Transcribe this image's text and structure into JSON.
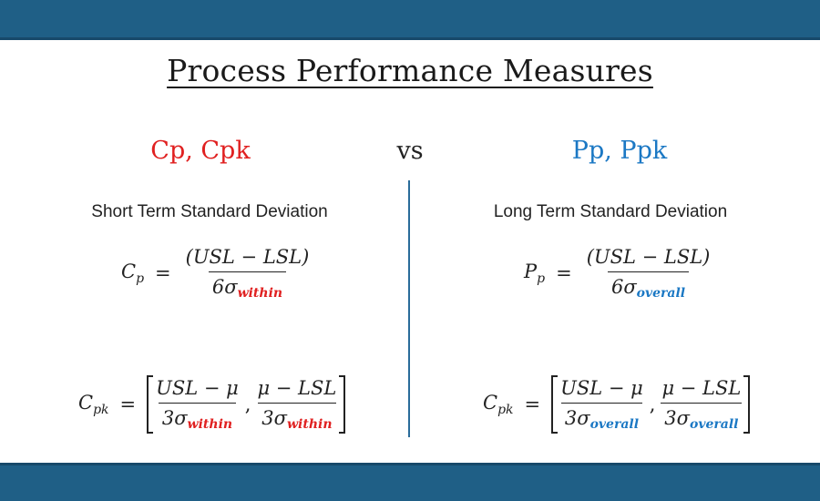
{
  "title": "Process Performance Measures",
  "left": {
    "heading": "Cp, Cpk",
    "subheading": "Short Term Standard Deviation",
    "cp_symbol": "C",
    "cp_sub": "p",
    "cp_numerator": "(USL − LSL)",
    "cp_den_prefix": "6σ",
    "sigma_label": "within",
    "cpk_symbol": "C",
    "cpk_sub": "pk",
    "cpk_num1": "USL − μ",
    "cpk_num2": "μ − LSL",
    "cpk_den_prefix": "3σ"
  },
  "vs": "vs",
  "right": {
    "heading": "Pp, Ppk",
    "subheading": "Long Term Standard Deviation",
    "pp_symbol": "P",
    "pp_sub": "p",
    "pp_numerator": "(USL − LSL)",
    "pp_den_prefix": "6σ",
    "sigma_label": "overall",
    "cpk_symbol": "C",
    "cpk_sub": "pk",
    "cpk_num1": "USL − μ",
    "cpk_num2": "μ − LSL",
    "cpk_den_prefix": "3σ"
  },
  "equals": "=",
  "comma": ",",
  "colors": {
    "band": "#1f5f86",
    "red": "#e02020",
    "blue": "#1b78c4",
    "divider": "#2a6c9a"
  }
}
